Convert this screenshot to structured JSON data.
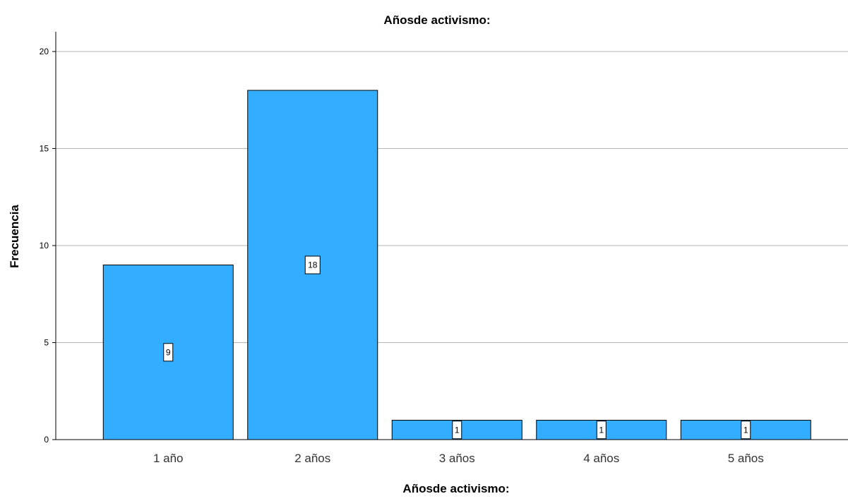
{
  "chart_data": {
    "type": "bar",
    "title": "Añosde activismo:",
    "xlabel": "Añosde activismo:",
    "ylabel": "Frecuencia",
    "categories": [
      "1 año",
      "2  años",
      "3 años",
      "4 años",
      "5 años"
    ],
    "values": [
      9,
      18,
      1,
      1,
      1
    ],
    "data_labels": [
      "9",
      "18",
      "1",
      "1",
      "1"
    ],
    "ylim": [
      0,
      21
    ],
    "yticks": [
      0,
      5,
      10,
      15,
      20
    ],
    "ytick_labels": [
      "0",
      "5",
      "10",
      "15",
      "20"
    ],
    "grid": true,
    "bar_color": "#33adff"
  }
}
